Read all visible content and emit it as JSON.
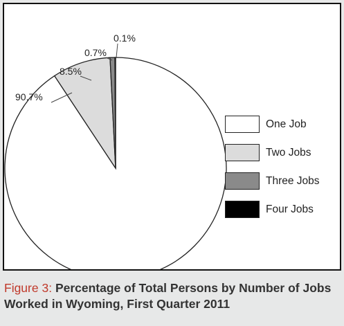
{
  "chart_data": {
    "type": "pie",
    "categories": [
      "One Job",
      "Two Jobs",
      "Three Jobs",
      "Four Jobs"
    ],
    "values": [
      90.7,
      8.5,
      0.7,
      0.1
    ],
    "value_labels": [
      "90.7%",
      "8.5%",
      "0.7%",
      "0.1%"
    ],
    "colors": [
      "#ffffff",
      "#dcdcdc",
      "#8a8a8a",
      "#000000"
    ],
    "legend_position": "right"
  },
  "caption": {
    "figure_number": "Figure 3:",
    "title": "Percentage of Total Persons by Number of Jobs Worked in Wyoming, First Quarter 2011",
    "number_color": "#c0392b"
  },
  "legend": {
    "items": [
      {
        "label": "One Job",
        "color": "#ffffff"
      },
      {
        "label": "Two Jobs",
        "color": "#dcdcdc"
      },
      {
        "label": "Three Jobs",
        "color": "#8a8a8a"
      },
      {
        "label": "Four Jobs",
        "color": "#000000"
      }
    ]
  }
}
